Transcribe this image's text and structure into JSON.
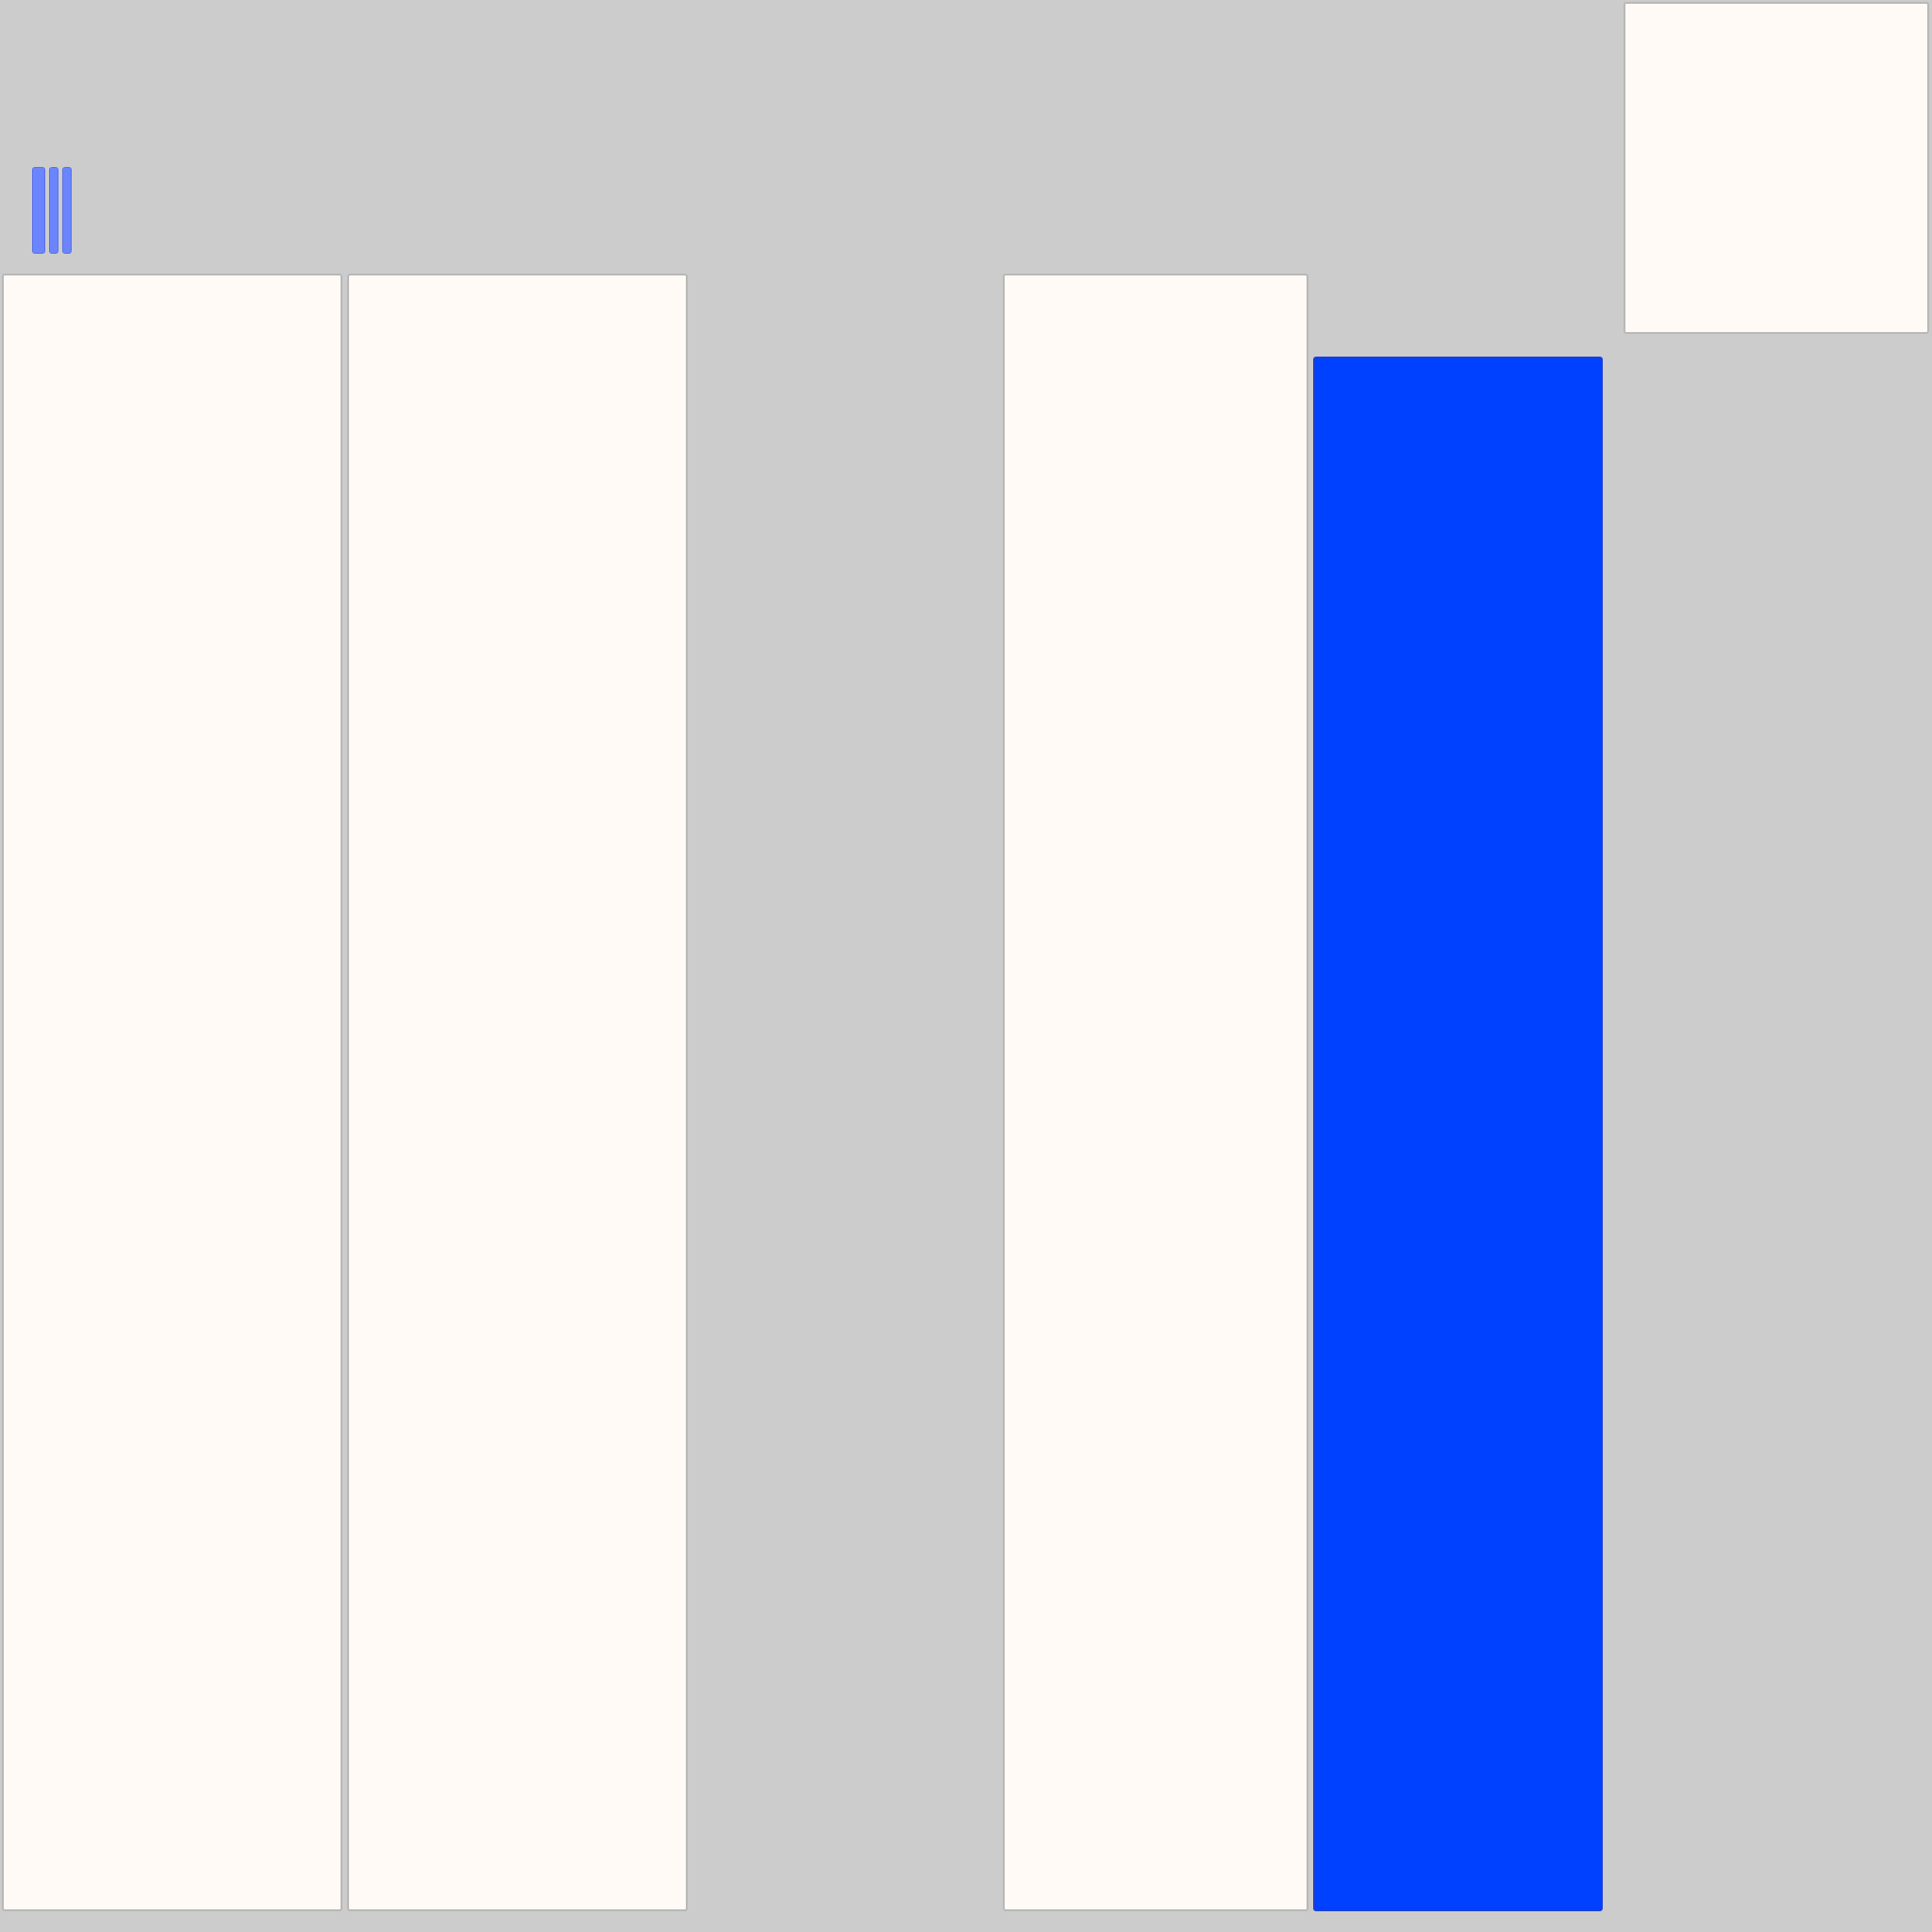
{
  "canvas": {
    "background": "#cccccc"
  },
  "colors": {
    "panel": "#fffaf5",
    "panel_border": "#b8b8b8",
    "selected_panel": "#0040ff",
    "handle": "#6b85ff"
  },
  "panels": [
    {
      "id": "panel-1",
      "selected": false
    },
    {
      "id": "panel-2",
      "selected": false
    },
    {
      "id": "panel-3",
      "selected": false
    },
    {
      "id": "panel-4",
      "selected": true
    },
    {
      "id": "panel-5",
      "selected": false
    }
  ],
  "toolbar": {
    "handles": [
      {
        "id": "handle-1",
        "icon": "grip-bar-icon"
      },
      {
        "id": "handle-2",
        "icon": "grip-bar-icon"
      },
      {
        "id": "handle-3",
        "icon": "grip-bar-icon"
      }
    ]
  }
}
